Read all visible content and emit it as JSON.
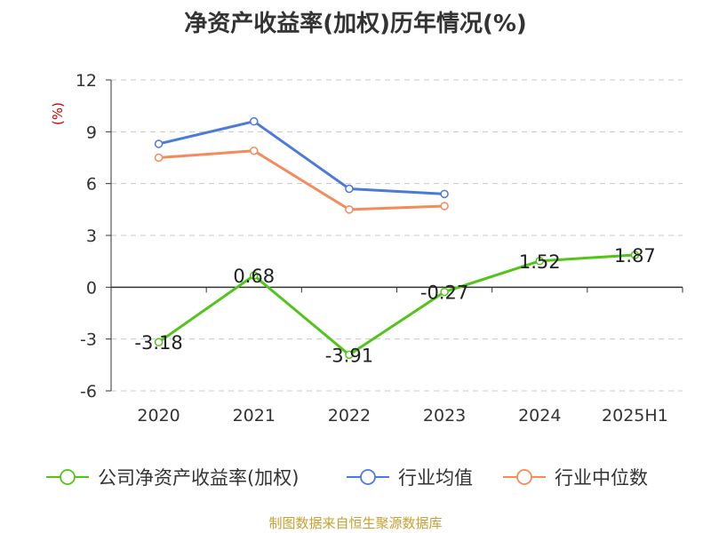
{
  "chart_data": {
    "type": "line",
    "title": "净资产收益率(加权)历年情况(%)",
    "ylabel": "(%)",
    "xlabel": "",
    "categories": [
      "2020",
      "2021",
      "2022",
      "2023",
      "2024",
      "2025H1"
    ],
    "ylim": [
      -6,
      12
    ],
    "yticks": [
      -6,
      -3,
      0,
      3,
      6,
      9,
      12
    ],
    "grid": true,
    "legend_position": "bottom",
    "series": [
      {
        "name": "公司净资产收益率(加权)",
        "color": "#52c41a",
        "values": [
          -3.18,
          0.68,
          -3.91,
          -0.27,
          1.52,
          1.87
        ],
        "data_labels": [
          "-3.18",
          "0.68",
          "-3.91",
          "-0.27",
          "1.52",
          "1.87"
        ]
      },
      {
        "name": "行业均值",
        "color": "#4b7ad8",
        "values": [
          8.3,
          9.6,
          5.7,
          5.4,
          null,
          null
        ]
      },
      {
        "name": "行业中位数",
        "color": "#f58a5a",
        "values": [
          7.5,
          7.9,
          4.5,
          4.7,
          null,
          null
        ]
      }
    ]
  },
  "source": "制图数据来自恒生聚源数据库",
  "colors": {
    "axis": "#333333",
    "grid": "#c8c8c8",
    "ylabel": "#cc0000",
    "source": "#c8a032"
  }
}
